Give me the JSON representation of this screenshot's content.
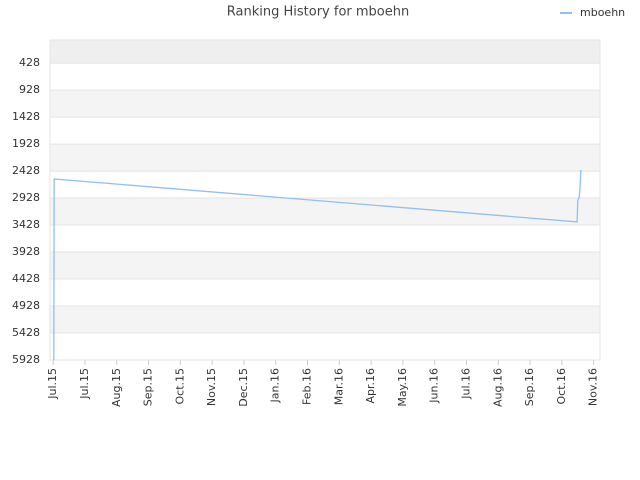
{
  "chart_data": {
    "type": "line",
    "title": "Ranking History for mboehn",
    "series": [
      {
        "name": "mboehn",
        "color": "#90c0f0",
        "x": [
          0.02,
          0.03,
          16.48,
          16.5,
          16.55,
          16.57,
          16.6
        ],
        "values": [
          5928,
          2574,
          3370,
          2981,
          2900,
          2741,
          2407
        ]
      }
    ],
    "xlim": [
      -0.1,
      17.2
    ],
    "xticks": [
      {
        "value": 0,
        "label": "Jul.15"
      },
      {
        "value": 1,
        "label": "Jul.15"
      },
      {
        "value": 2,
        "label": "Aug.15"
      },
      {
        "value": 3,
        "label": "Sep.15"
      },
      {
        "value": 4,
        "label": "Oct.15"
      },
      {
        "value": 5,
        "label": "Nov.15"
      },
      {
        "value": 6,
        "label": "Dec.15"
      },
      {
        "value": 7,
        "label": "Jan.16"
      },
      {
        "value": 8,
        "label": "Feb.16"
      },
      {
        "value": 9,
        "label": "Mar.16"
      },
      {
        "value": 10,
        "label": "Apr.16"
      },
      {
        "value": 11,
        "label": "May.16"
      },
      {
        "value": 12,
        "label": "Jun.16"
      },
      {
        "value": 13,
        "label": "Jul.16"
      },
      {
        "value": 14,
        "label": "Aug.16"
      },
      {
        "value": 15,
        "label": "Sep.16"
      },
      {
        "value": 16,
        "label": "Oct.16"
      },
      {
        "value": 17,
        "label": "Nov.16"
      }
    ],
    "ylim": [
      5928,
      0
    ],
    "yticks": [
      428,
      928,
      1428,
      1928,
      2428,
      2928,
      3428,
      3928,
      4428,
      4928,
      5428,
      5928
    ],
    "grid": true,
    "legend": "top-right"
  }
}
